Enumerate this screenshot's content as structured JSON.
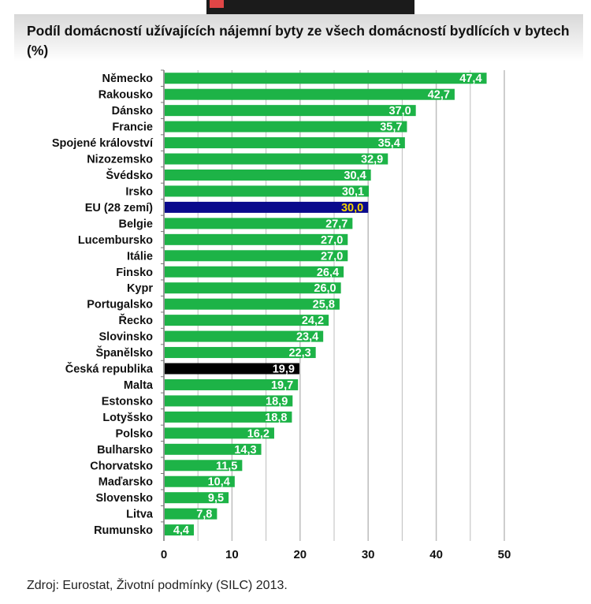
{
  "chart_data": {
    "type": "bar",
    "orientation": "horizontal",
    "title": "Podíl domácností užívajících nájemní byty ze všech domácností bydlících v bytech (%)",
    "categories": [
      "Německo",
      "Rakousko",
      "Dánsko",
      "Francie",
      "Spojené království",
      "Nizozemsko",
      "Švédsko",
      "Irsko",
      "EU (28 zemí)",
      "Belgie",
      "Lucembursko",
      "Itálie",
      "Finsko",
      "Kypr",
      "Portugalsko",
      "Řecko",
      "Slovinsko",
      "Španělsko",
      "Česká republika",
      "Malta",
      "Estonsko",
      "Lotyšsko",
      "Polsko",
      "Bulharsko",
      "Chorvatsko",
      "Maďarsko",
      "Slovensko",
      "Litva",
      "Rumunsko"
    ],
    "values": [
      47.4,
      42.7,
      37.0,
      35.7,
      35.4,
      32.9,
      30.4,
      30.1,
      30.0,
      27.7,
      27.0,
      27.0,
      26.4,
      26.0,
      25.8,
      24.2,
      23.4,
      22.3,
      19.9,
      19.7,
      18.9,
      18.8,
      16.2,
      14.3,
      11.5,
      10.4,
      9.5,
      7.8,
      4.4
    ],
    "labels": [
      "47,4",
      "42,7",
      "37,0",
      "35,7",
      "35,4",
      "32,9",
      "30,4",
      "30,1",
      "30,0",
      "27,7",
      "27,0",
      "27,0",
      "26,4",
      "26,0",
      "25,8",
      "24,2",
      "23,4",
      "22,3",
      "19,9",
      "19,7",
      "18,9",
      "18,8",
      "16,2",
      "14,3",
      "11,5",
      "10,4",
      "9,5",
      "7,8",
      "4,4"
    ],
    "xlim": [
      0,
      50
    ],
    "xticks": [
      "0",
      "10",
      "20",
      "30",
      "40",
      "50"
    ],
    "grid": true,
    "colors": {
      "default": "#1db347",
      "EU (28 zemí)": "#0a0a8c",
      "Česká republika": "#000000",
      "label": "#ffffff",
      "eu_label": "#f5d400"
    },
    "source": "Zdroj: Eurostat, Životní podmínky (SILC) 2013."
  }
}
